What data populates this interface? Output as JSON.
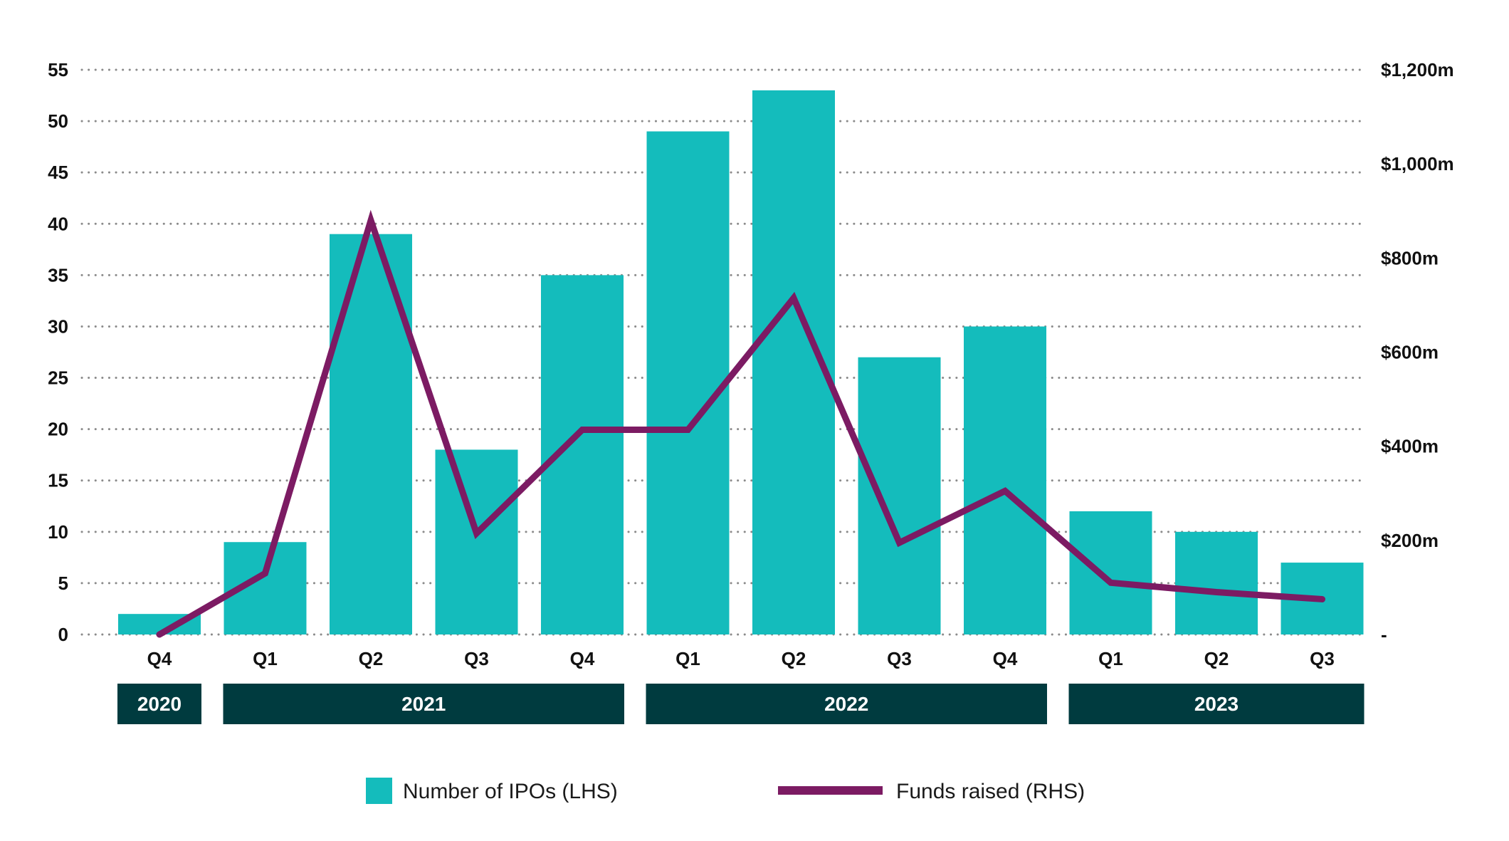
{
  "chart_data": {
    "type": "bar",
    "title": "",
    "categories": [
      "Q4",
      "Q1",
      "Q2",
      "Q3",
      "Q4",
      "Q1",
      "Q2",
      "Q3",
      "Q4",
      "Q1",
      "Q2",
      "Q3"
    ],
    "year_groups": [
      {
        "label": "2020",
        "start": 0,
        "end": 0
      },
      {
        "label": "2021",
        "start": 1,
        "end": 4
      },
      {
        "label": "2022",
        "start": 5,
        "end": 8
      },
      {
        "label": "2023",
        "start": 9,
        "end": 11
      }
    ],
    "series": [
      {
        "name": "Number of IPOs (LHS)",
        "type": "bar",
        "axis": "left",
        "color": "#14bcbc",
        "values": [
          2,
          9,
          39,
          18,
          35,
          49,
          53,
          27,
          30,
          12,
          10,
          7
        ]
      },
      {
        "name": "Funds raised (RHS)",
        "type": "line",
        "axis": "right",
        "color": "#7c1b63",
        "values": [
          0,
          130,
          880,
          215,
          435,
          435,
          715,
          195,
          305,
          110,
          90,
          75
        ]
      }
    ],
    "y_left": {
      "min": 0,
      "max": 55,
      "step": 5,
      "ticks": [
        "0",
        "5",
        "10",
        "15",
        "20",
        "25",
        "30",
        "35",
        "40",
        "45",
        "50",
        "55"
      ]
    },
    "y_right": {
      "min": 0,
      "max": 1200,
      "step": 200,
      "ticks": [
        "-",
        "$200m",
        "$400m",
        "$600m",
        "$800m",
        "$1,000m",
        "$1,200m"
      ]
    },
    "grid": true,
    "legend_position": "bottom",
    "colors": {
      "bar": "#14bcbc",
      "line": "#7c1b63",
      "year_box": "#003b3f",
      "grid": "#8a8a8a"
    }
  }
}
